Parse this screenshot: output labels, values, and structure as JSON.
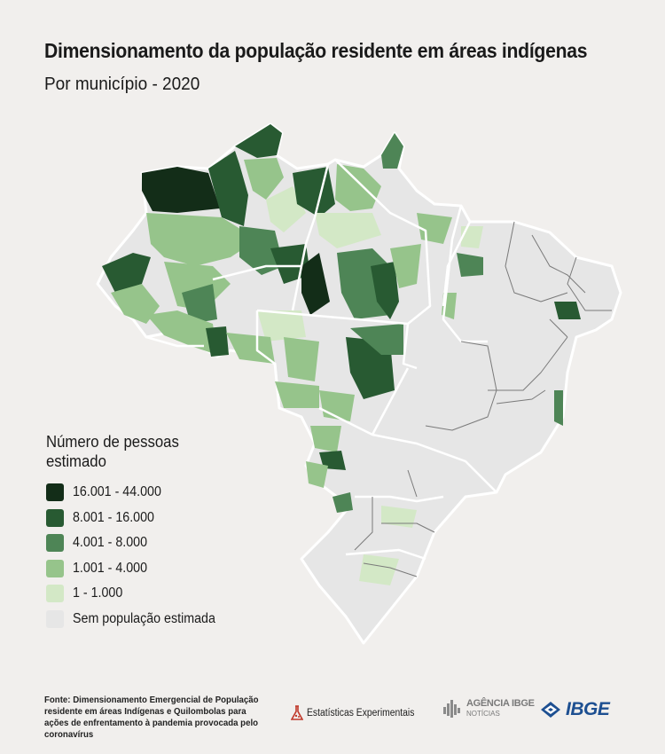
{
  "header": {
    "title": "Dimensionamento da população residente em áreas indígenas",
    "subtitle": "Por município - 2020"
  },
  "legend": {
    "title": "Número de pessoas estimado",
    "items": [
      {
        "label": "16.001 - 44.000",
        "color": "#132d18"
      },
      {
        "label": "8.001 - 16.000",
        "color": "#285a32"
      },
      {
        "label": "4.001 - 8.000",
        "color": "#4e8556"
      },
      {
        "label": "1.001 - 4.000",
        "color": "#96c48b"
      },
      {
        "label": "1 - 1.000",
        "color": "#d3e8c6"
      },
      {
        "label": "Sem população estimada",
        "color": "#e6e6e6"
      }
    ]
  },
  "footer": {
    "source": "Fonte: Dimensionamento Emergencial de População residente em áreas Indígenas e Quilombolas para ações de enfrentamento à pandemia provocada pelo coronavírus",
    "logo_ee": "Estatísticas Experimentais",
    "logo_agencia_line1": "AGÊNCIA IBGE",
    "logo_agencia_line2": "NOTÍCIAS",
    "logo_ibge": "IBGE"
  },
  "colors": {
    "background": "#f1efed",
    "state_border": "#ffffff",
    "municipality_border": "#7a7a7a",
    "ibge_blue": "#1d4f91",
    "ee_red": "#c0392b"
  }
}
